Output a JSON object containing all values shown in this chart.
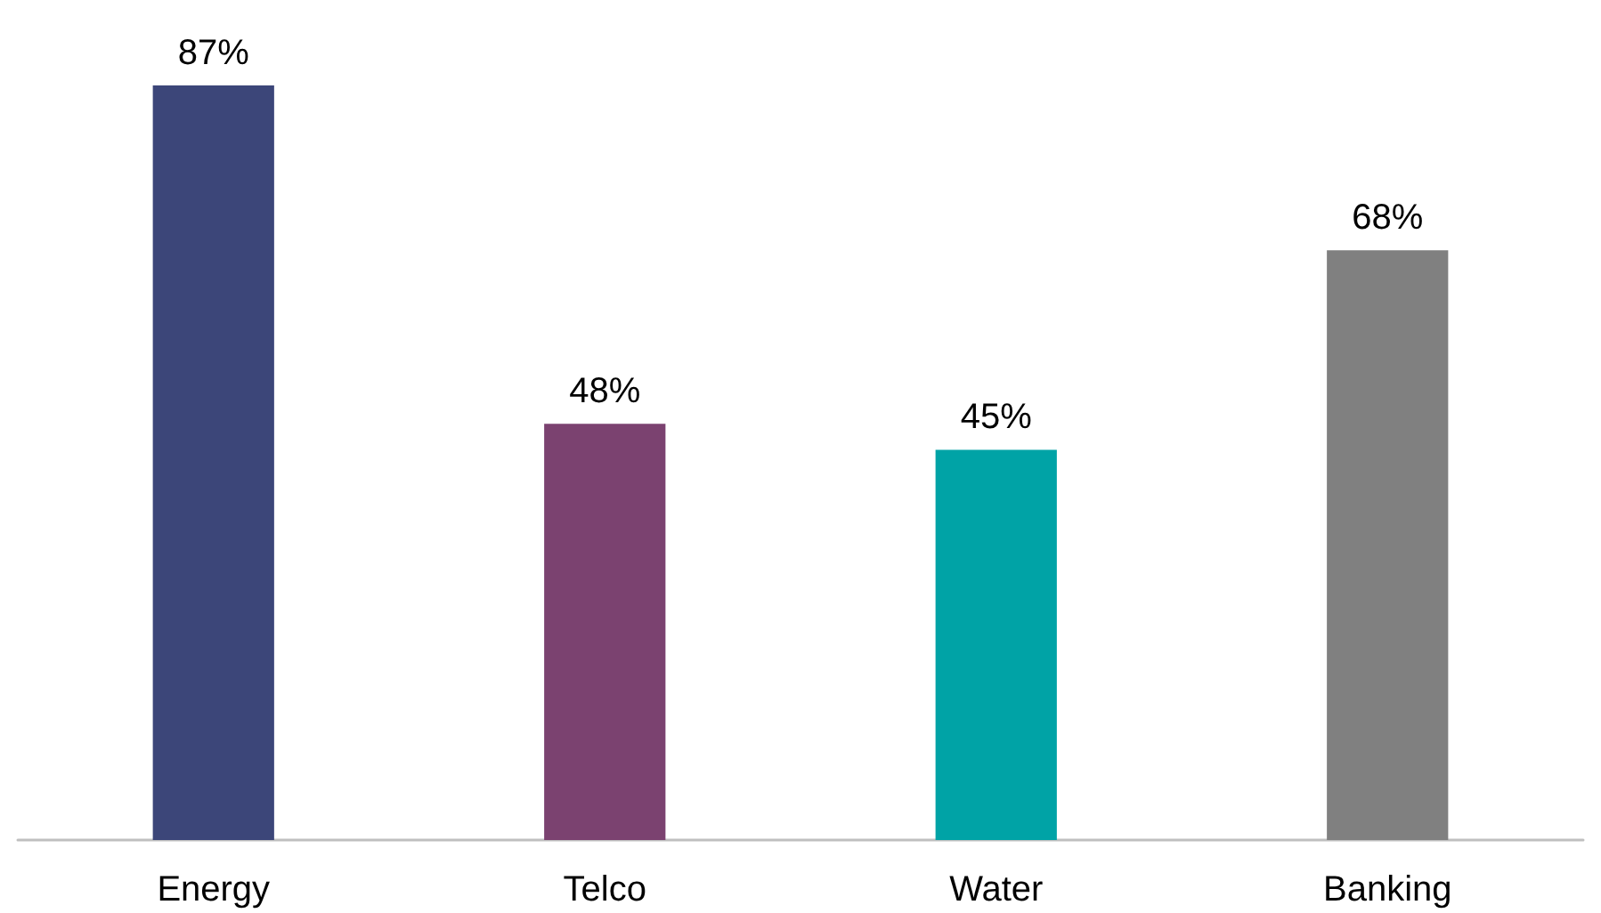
{
  "chart_data": {
    "type": "bar",
    "categories": [
      "Energy",
      "Telco",
      "Water",
      "Banking"
    ],
    "values": [
      87,
      48,
      45,
      68
    ],
    "colors": [
      "#3c4679",
      "#7b4270",
      "#00a3a6",
      "#808080"
    ],
    "value_labels": [
      "87%",
      "48%",
      "45%",
      "68%"
    ]
  }
}
